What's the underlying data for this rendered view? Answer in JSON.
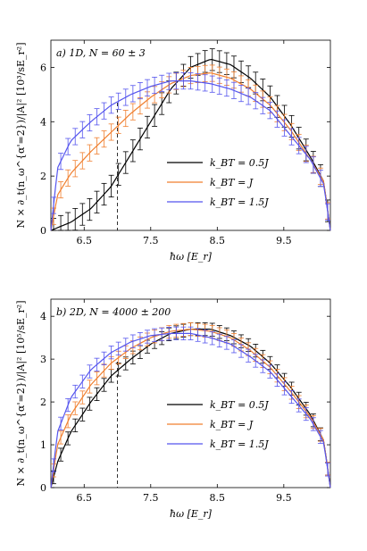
{
  "chart_data": [
    {
      "type": "line",
      "panel_label": "a) 1D, N = 60 ± 3",
      "xlabel": "ħω [E_r]",
      "ylabel": "N × ∂_t(n_ω^{α'=2})/|A|² [10³/sE_r²]",
      "xlim": [
        6.0,
        10.2
      ],
      "ylim": [
        0,
        7
      ],
      "x_ticks": [
        "6.5",
        "7.5",
        "8.5",
        "9.5"
      ],
      "y_ticks": [
        "0",
        "2",
        "4",
        "6"
      ],
      "vline_x": 7.0,
      "legend_position": "center-right",
      "series": [
        {
          "name": "k_BT = 0.5J",
          "color": "#000000",
          "x": [
            6.0,
            6.3,
            6.6,
            6.9,
            7.2,
            7.5,
            7.8,
            8.1,
            8.4,
            8.7,
            9.0,
            9.3,
            9.6,
            9.9,
            10.1,
            10.2
          ],
          "y": [
            0.0,
            0.3,
            0.8,
            1.6,
            2.8,
            4.0,
            5.2,
            6.0,
            6.3,
            6.1,
            5.6,
            4.9,
            3.9,
            2.7,
            1.8,
            0.0
          ],
          "err": 0.4
        },
        {
          "name": "k_BT = J",
          "color": "#f07f2f",
          "x": [
            6.0,
            6.1,
            6.3,
            6.6,
            6.9,
            7.2,
            7.5,
            7.8,
            8.1,
            8.4,
            8.7,
            9.0,
            9.3,
            9.6,
            9.9,
            10.1,
            10.2
          ],
          "y": [
            0.0,
            1.3,
            2.1,
            2.9,
            3.6,
            4.3,
            4.9,
            5.4,
            5.7,
            5.8,
            5.6,
            5.2,
            4.6,
            3.7,
            2.6,
            1.8,
            0.0
          ],
          "err": 0.3
        },
        {
          "name": "k_BT = 1.5J",
          "color": "#5555ee",
          "x": [
            6.0,
            6.1,
            6.3,
            6.6,
            6.9,
            7.2,
            7.5,
            7.8,
            8.1,
            8.4,
            8.7,
            9.0,
            9.3,
            9.6,
            9.9,
            10.1,
            10.2
          ],
          "y": [
            0.0,
            2.3,
            3.3,
            4.0,
            4.6,
            5.0,
            5.3,
            5.5,
            5.5,
            5.4,
            5.2,
            4.9,
            4.4,
            3.5,
            2.6,
            1.7,
            0.0
          ],
          "err": 0.3
        }
      ]
    },
    {
      "type": "line",
      "panel_label": "b) 2D, N = 4000 ± 200",
      "xlabel": "ħω [E_r]",
      "ylabel": "N × ∂_t(n_ω^{α'=2})/|A|² [10⁵/sE_r²]",
      "xlim": [
        6.0,
        10.2
      ],
      "ylim": [
        0,
        4.4
      ],
      "x_ticks": [
        "6.5",
        "7.5",
        "8.5",
        "9.5"
      ],
      "y_ticks": [
        "0",
        "1",
        "2",
        "3",
        "4"
      ],
      "vline_x": 7.0,
      "legend_position": "lower-right",
      "series": [
        {
          "name": "k_BT = 0.5J",
          "color": "#000000",
          "x": [
            6.0,
            6.1,
            6.3,
            6.6,
            6.9,
            7.2,
            7.5,
            7.8,
            8.1,
            8.4,
            8.7,
            9.0,
            9.3,
            9.6,
            9.9,
            10.1,
            10.2
          ],
          "y": [
            0.0,
            0.6,
            1.3,
            2.0,
            2.6,
            3.0,
            3.35,
            3.6,
            3.7,
            3.7,
            3.55,
            3.3,
            2.9,
            2.35,
            1.7,
            1.1,
            0.0
          ],
          "err": 0.15
        },
        {
          "name": "k_BT = J",
          "color": "#f07f2f",
          "x": [
            6.0,
            6.1,
            6.3,
            6.6,
            6.9,
            7.2,
            7.5,
            7.8,
            8.1,
            8.4,
            8.7,
            9.0,
            9.3,
            9.6,
            9.9,
            10.1,
            10.2
          ],
          "y": [
            0.0,
            1.0,
            1.7,
            2.4,
            2.9,
            3.25,
            3.5,
            3.65,
            3.7,
            3.65,
            3.5,
            3.2,
            2.8,
            2.25,
            1.65,
            1.1,
            0.0
          ],
          "err": 0.15
        },
        {
          "name": "k_BT = 1.5J",
          "color": "#5555ee",
          "x": [
            6.0,
            6.1,
            6.3,
            6.6,
            6.9,
            7.2,
            7.5,
            7.8,
            8.1,
            8.4,
            8.7,
            9.0,
            9.3,
            9.6,
            9.9,
            10.1,
            10.2
          ],
          "y": [
            0.0,
            1.3,
            2.1,
            2.75,
            3.15,
            3.4,
            3.55,
            3.6,
            3.6,
            3.5,
            3.35,
            3.05,
            2.7,
            2.15,
            1.6,
            1.05,
            0.0
          ],
          "err": 0.15
        }
      ]
    }
  ]
}
